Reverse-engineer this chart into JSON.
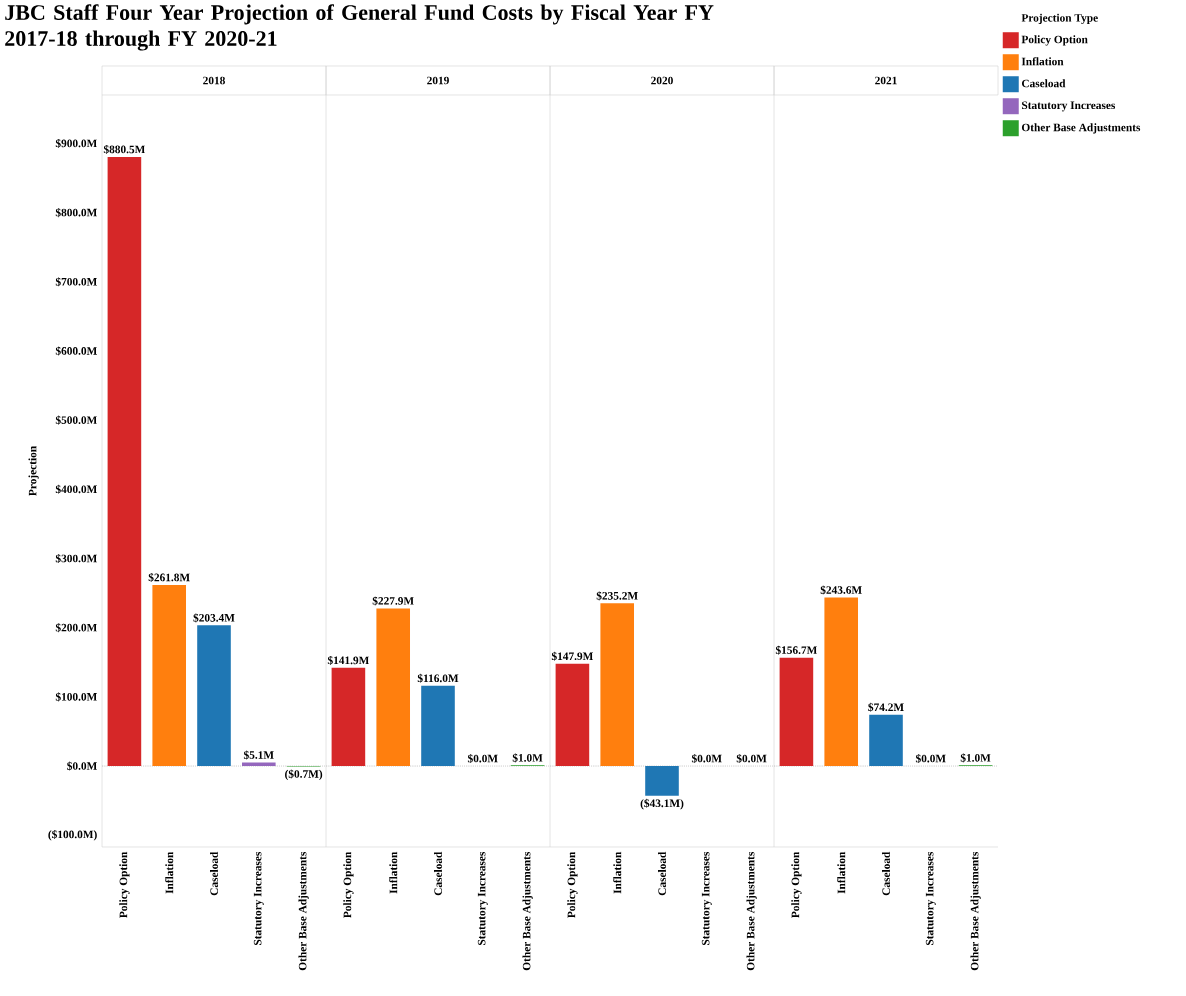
{
  "chart_data": [
    {
      "type": "bar",
      "title": "JBC Staff Four Year Projection of General Fund Costs by Fiscal Year FY 2017-18 through FY 2020-21",
      "subtitle": "2018",
      "ylabel": "Projection",
      "categories": [
        "Policy Option",
        "Inflation",
        "Caseload",
        "Statutory Increases",
        "Other Base Adjustments"
      ],
      "series": [
        {
          "color": "#d62728",
          "values": [
            880.5,
            null,
            null,
            null,
            null
          ],
          "value_labels": [
            "$880.5M",
            null,
            null,
            null,
            null
          ]
        },
        {
          "color": "#ff7f0e",
          "values": [
            null,
            261.8,
            null,
            null,
            null
          ],
          "value_labels": [
            null,
            "$261.8M",
            null,
            null,
            null
          ]
        },
        {
          "color": "#1f77b4",
          "values": [
            null,
            null,
            203.4,
            null,
            null
          ],
          "value_labels": [
            null,
            null,
            "$203.4M",
            null,
            null
          ]
        },
        {
          "color": "#9467bd",
          "values": [
            null,
            null,
            null,
            5.1,
            null
          ],
          "value_labels": [
            null,
            null,
            null,
            "$5.1M",
            null
          ]
        },
        {
          "color": "#2ca02c",
          "values": [
            null,
            null,
            null,
            null,
            -0.7
          ],
          "value_labels": [
            null,
            null,
            null,
            null,
            "($0.7M)"
          ]
        }
      ],
      "ylim": [
        -117,
        970
      ],
      "yticks": [
        {
          "value": -100,
          "label": "($100.0M)"
        },
        {
          "value": 0,
          "label": "$0.0M"
        },
        {
          "value": 100,
          "label": "$100.0M"
        },
        {
          "value": 200,
          "label": "$200.0M"
        },
        {
          "value": 300,
          "label": "$300.0M"
        },
        {
          "value": 400,
          "label": "$400.0M"
        },
        {
          "value": 500,
          "label": "$500.0M"
        },
        {
          "value": 600,
          "label": "$600.0M"
        },
        {
          "value": 700,
          "label": "$700.0M"
        },
        {
          "value": 800,
          "label": "$800.0M"
        },
        {
          "value": 900,
          "label": "$900.0M"
        }
      ],
      "ref_lines": [
        {
          "axis": "y",
          "value": 0,
          "line_style": "dotted"
        }
      ]
    },
    {
      "type": "bar",
      "subtitle": "2019",
      "categories": [
        "Policy Option",
        "Inflation",
        "Caseload",
        "Statutory Increases",
        "Other Base Adjustments"
      ],
      "series": [
        {
          "color": "#d62728",
          "values": [
            141.9,
            null,
            null,
            null,
            null
          ],
          "value_labels": [
            "$141.9M",
            null,
            null,
            null,
            null
          ]
        },
        {
          "color": "#ff7f0e",
          "values": [
            null,
            227.9,
            null,
            null,
            null
          ],
          "value_labels": [
            null,
            "$227.9M",
            null,
            null,
            null
          ]
        },
        {
          "color": "#1f77b4",
          "values": [
            null,
            null,
            116.0,
            null,
            null
          ],
          "value_labels": [
            null,
            null,
            "$116.0M",
            null,
            null
          ]
        },
        {
          "color": "#9467bd",
          "values": [
            null,
            null,
            null,
            0.0,
            null
          ],
          "value_labels": [
            null,
            null,
            null,
            "$0.0M",
            null
          ]
        },
        {
          "color": "#2ca02c",
          "values": [
            null,
            null,
            null,
            null,
            1.0
          ],
          "value_labels": [
            null,
            null,
            null,
            null,
            "$1.0M"
          ]
        }
      ],
      "ylim": [
        -117,
        970
      ],
      "tick_labels": "x",
      "ref_lines": [
        {
          "axis": "y",
          "value": 0,
          "line_style": "dotted"
        }
      ]
    },
    {
      "type": "bar",
      "subtitle": "2020",
      "categories": [
        "Policy Option",
        "Inflation",
        "Caseload",
        "Statutory Increases",
        "Other Base Adjustments"
      ],
      "series": [
        {
          "color": "#d62728",
          "values": [
            147.9,
            null,
            null,
            null,
            null
          ],
          "value_labels": [
            "$147.9M",
            null,
            null,
            null,
            null
          ]
        },
        {
          "color": "#ff7f0e",
          "values": [
            null,
            235.2,
            null,
            null,
            null
          ],
          "value_labels": [
            null,
            "$235.2M",
            null,
            null,
            null
          ]
        },
        {
          "color": "#1f77b4",
          "values": [
            null,
            null,
            -43.1,
            null,
            null
          ],
          "value_labels": [
            null,
            null,
            "($43.1M)",
            null,
            null
          ]
        },
        {
          "color": "#9467bd",
          "values": [
            null,
            null,
            null,
            0.0,
            null
          ],
          "value_labels": [
            null,
            null,
            null,
            "$0.0M",
            null
          ]
        },
        {
          "color": "#2ca02c",
          "values": [
            null,
            null,
            null,
            null,
            0.0
          ],
          "value_labels": [
            null,
            null,
            null,
            null,
            "$0.0M"
          ]
        }
      ],
      "ylim": [
        -117,
        970
      ],
      "tick_labels": "x",
      "ref_lines": [
        {
          "axis": "y",
          "value": 0,
          "line_style": "dotted"
        }
      ]
    },
    {
      "type": "bar",
      "subtitle": "2021",
      "legend": "right",
      "legend_title": "Projection Type",
      "categories": [
        "Policy Option",
        "Inflation",
        "Caseload",
        "Statutory Increases",
        "Other Base Adjustments"
      ],
      "series": [
        {
          "name": "Policy Option",
          "color": "#d62728",
          "values": [
            156.7,
            null,
            null,
            null,
            null
          ],
          "value_labels": [
            "$156.7M",
            null,
            null,
            null,
            null
          ]
        },
        {
          "name": "Inflation",
          "color": "#ff7f0e",
          "values": [
            null,
            243.6,
            null,
            null,
            null
          ],
          "value_labels": [
            null,
            "$243.6M",
            null,
            null,
            null
          ]
        },
        {
          "name": "Caseload",
          "color": "#1f77b4",
          "values": [
            null,
            null,
            74.2,
            null,
            null
          ],
          "value_labels": [
            null,
            null,
            "$74.2M",
            null,
            null
          ]
        },
        {
          "name": "Statutory Increases",
          "color": "#9467bd",
          "values": [
            null,
            null,
            null,
            0.0,
            null
          ],
          "value_labels": [
            null,
            null,
            null,
            "$0.0M",
            null
          ]
        },
        {
          "name": "Other Base Adjustments",
          "color": "#2ca02c",
          "values": [
            null,
            null,
            null,
            null,
            1.0
          ],
          "value_labels": [
            null,
            null,
            null,
            null,
            "$1.0M"
          ]
        }
      ],
      "ylim": [
        -117,
        970
      ],
      "tick_labels": "x",
      "ref_lines": [
        {
          "axis": "y",
          "value": 0,
          "line_style": "dotted"
        }
      ]
    }
  ]
}
